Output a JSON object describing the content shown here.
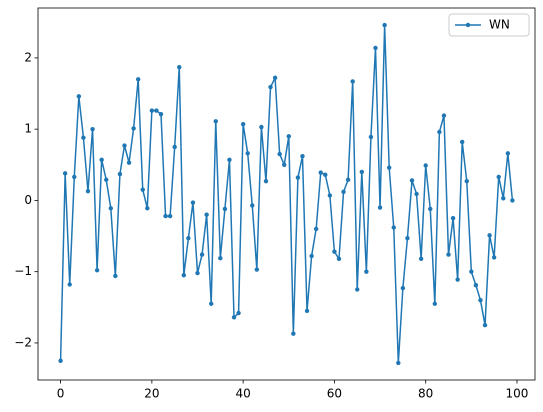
{
  "chart_data": {
    "type": "line",
    "x": [
      0,
      1,
      2,
      3,
      4,
      5,
      6,
      7,
      8,
      9,
      10,
      11,
      12,
      13,
      14,
      15,
      16,
      17,
      18,
      19,
      20,
      21,
      22,
      23,
      24,
      25,
      26,
      27,
      28,
      29,
      30,
      31,
      32,
      33,
      34,
      35,
      36,
      37,
      38,
      39,
      40,
      41,
      42,
      43,
      44,
      45,
      46,
      47,
      48,
      49,
      50,
      51,
      52,
      53,
      54,
      55,
      56,
      57,
      58,
      59,
      60,
      61,
      62,
      63,
      64,
      65,
      66,
      67,
      68,
      69,
      70,
      71,
      72,
      73,
      74,
      75,
      76,
      77,
      78,
      79,
      80,
      81,
      82,
      83,
      84,
      85,
      86,
      87,
      88,
      89,
      90,
      91,
      92,
      93,
      94,
      95,
      96,
      97,
      98,
      99
    ],
    "series": [
      {
        "name": "WN",
        "color": "#1f77b4",
        "values": [
          -2.25,
          0.38,
          -1.18,
          0.33,
          1.46,
          0.88,
          0.13,
          1.0,
          -0.98,
          0.57,
          0.29,
          -0.11,
          -1.06,
          0.37,
          0.77,
          0.53,
          1.01,
          1.7,
          0.15,
          -0.11,
          1.26,
          1.26,
          1.21,
          -0.22,
          -0.22,
          0.75,
          1.87,
          -1.05,
          -0.53,
          -0.03,
          -1.02,
          -0.76,
          -0.2,
          -1.45,
          1.11,
          -0.81,
          -0.12,
          0.57,
          -1.64,
          -1.58,
          1.07,
          0.66,
          -0.07,
          -0.97,
          1.03,
          0.27,
          1.59,
          1.72,
          0.65,
          0.5,
          0.9,
          -1.87,
          0.32,
          0.62,
          -1.55,
          -0.78,
          -0.4,
          0.39,
          0.36,
          0.07,
          -0.72,
          -0.82,
          0.12,
          0.29,
          1.67,
          -1.25,
          0.4,
          -1.0,
          0.89,
          2.14,
          -0.1,
          2.46,
          0.46,
          -0.38,
          -2.28,
          -1.23,
          -0.53,
          0.28,
          0.09,
          -0.82,
          0.49,
          -0.12,
          -1.45,
          0.96,
          1.19,
          -0.76,
          -0.25,
          -1.11,
          0.82,
          0.27,
          -1.0,
          -1.19,
          -1.4,
          -1.75,
          -0.49,
          -0.8,
          0.33,
          0.03,
          0.66,
          0.0
        ]
      }
    ],
    "xlim": [
      -4.95,
      103.95
    ],
    "ylim": [
      -2.52,
      2.7
    ],
    "xticks": [
      0,
      20,
      40,
      60,
      80,
      100
    ],
    "yticks": [
      {
        "value": -2,
        "label": "−2"
      },
      {
        "value": -1,
        "label": "−1"
      },
      0,
      1,
      2
    ],
    "grid": false,
    "legend": "upper right"
  }
}
